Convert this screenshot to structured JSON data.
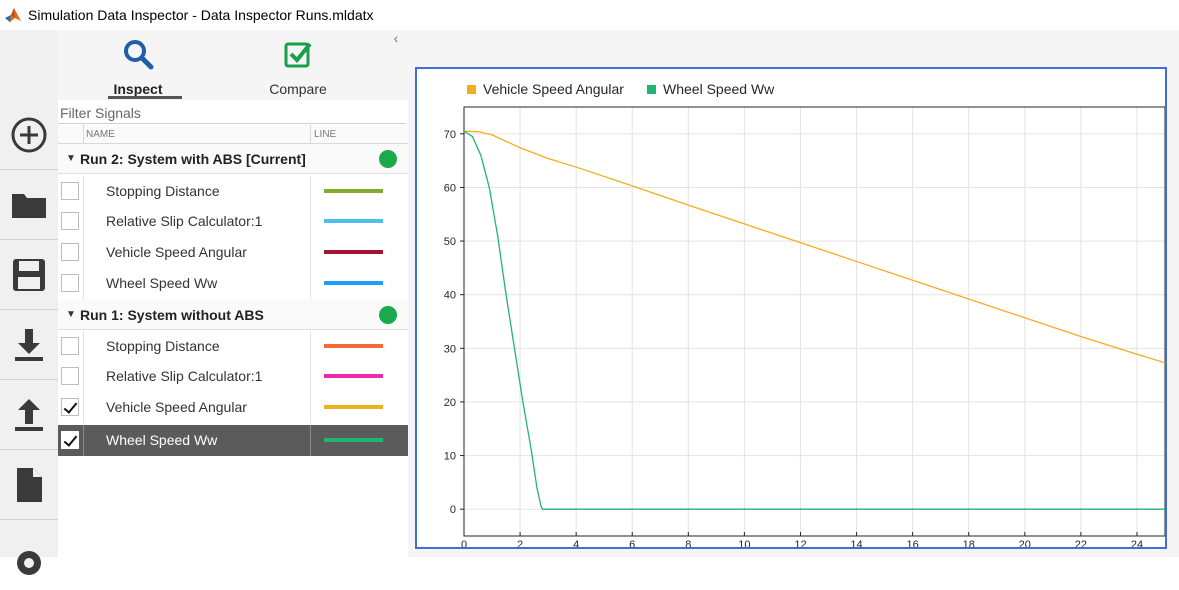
{
  "window": {
    "title": "Simulation Data Inspector - Data Inspector Runs.mldatx"
  },
  "toolbar": {
    "buttons": [
      {
        "name": "new-icon"
      },
      {
        "name": "open-folder-icon"
      },
      {
        "name": "save-icon"
      },
      {
        "name": "import-icon"
      },
      {
        "name": "export-icon"
      },
      {
        "name": "report-icon"
      },
      {
        "name": "settings-icon"
      }
    ]
  },
  "tabs": {
    "inspect": "Inspect",
    "compare": "Compare"
  },
  "filter": {
    "placeholder": "Filter Signals"
  },
  "columns": {
    "name": "NAME",
    "line": "LINE"
  },
  "runs": [
    {
      "name": "Run 2: System with ABS [Current]",
      "signals": [
        {
          "name": "Stopping Distance",
          "color": "#7fab2f",
          "checked": false,
          "selected": false
        },
        {
          "name": "Relative Slip Calculator:1",
          "color": "#4dbeee",
          "checked": false,
          "selected": false
        },
        {
          "name": "Vehicle Speed Angular",
          "color": "#a2142f",
          "checked": false,
          "selected": false
        },
        {
          "name": "Wheel Speed Ww",
          "color": "#1e9ff2",
          "checked": false,
          "selected": false
        }
      ]
    },
    {
      "name": "Run 1: System without ABS",
      "signals": [
        {
          "name": "Stopping Distance",
          "color": "#f26b36",
          "checked": false,
          "selected": false
        },
        {
          "name": "Relative Slip Calculator:1",
          "color": "#ee2aa9",
          "checked": false,
          "selected": false
        },
        {
          "name": "Vehicle Speed Angular",
          "color": "#edb120",
          "checked": true,
          "selected": false
        },
        {
          "name": "Wheel Speed Ww",
          "color": "#20b573",
          "checked": true,
          "selected": true
        }
      ]
    }
  ],
  "chart_data": {
    "type": "line",
    "xlim": [
      0,
      25
    ],
    "ylim": [
      -5,
      75
    ],
    "xticks": [
      0,
      2,
      4,
      6,
      8,
      10,
      12,
      14,
      16,
      18,
      20,
      22,
      24
    ],
    "yticks": [
      0,
      10,
      20,
      30,
      40,
      50,
      60,
      70
    ],
    "grid": true,
    "legend_position": "top-left",
    "series": [
      {
        "name": "Vehicle Speed Angular",
        "color": "#edb120",
        "x": [
          0,
          0.5,
          1,
          2,
          3,
          4,
          6,
          8,
          10,
          12,
          14,
          16,
          18,
          20,
          22,
          24,
          25
        ],
        "y": [
          70.5,
          70.4,
          69.8,
          67.4,
          65.4,
          63.8,
          60.3,
          56.7,
          53.2,
          49.7,
          46.2,
          42.7,
          39.2,
          35.7,
          32.2,
          28.9,
          27.3
        ]
      },
      {
        "name": "Wheel Speed Ww",
        "color": "#20b573",
        "x": [
          0,
          0.3,
          0.6,
          0.9,
          1.2,
          1.5,
          1.8,
          2.1,
          2.4,
          2.6,
          2.75,
          2.8,
          5,
          10,
          15,
          20,
          25
        ],
        "y": [
          70.5,
          69.5,
          66,
          60,
          51,
          40,
          30,
          20,
          11,
          4,
          0.5,
          0,
          0,
          0,
          0,
          0,
          0
        ]
      }
    ]
  }
}
